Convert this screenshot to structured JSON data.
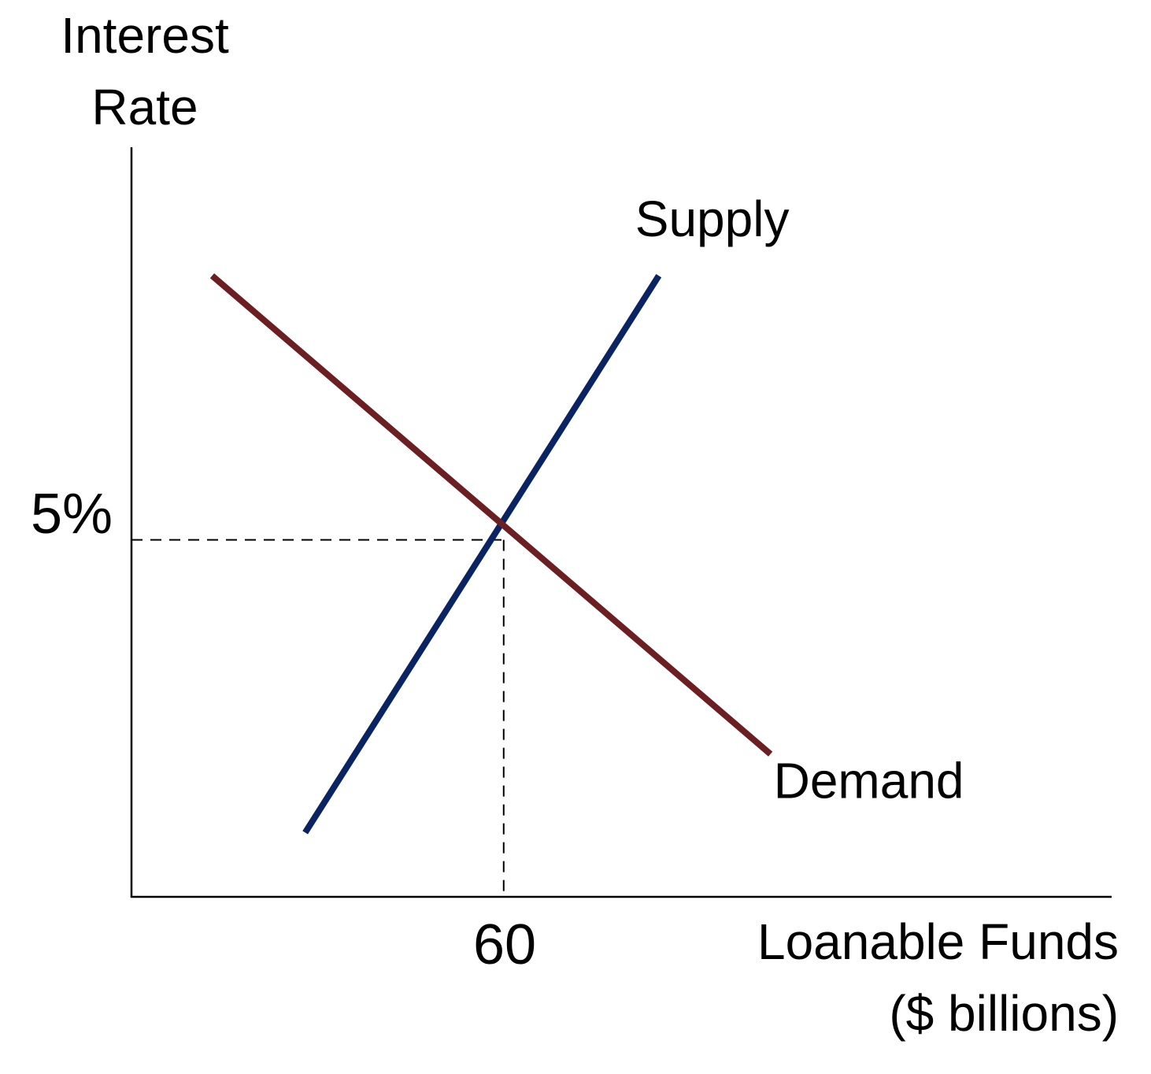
{
  "chart_data": {
    "type": "line",
    "ylabel": [
      "Interest",
      "Rate"
    ],
    "xlabel": [
      "Loanable Funds",
      "($ billions)"
    ],
    "equilibrium": {
      "x": 60,
      "y": 5,
      "x_label": "60",
      "y_label": "5%"
    },
    "xlim": [
      0,
      158
    ],
    "ylim": [
      0,
      10.5
    ],
    "series": [
      {
        "name": "Supply",
        "color": "#0a2463",
        "x": [
          28,
          85
        ],
        "y": [
          0.9,
          8.7
        ]
      },
      {
        "name": "Demand",
        "color": "#6b1f22",
        "x": [
          13,
          103
        ],
        "y": [
          8.7,
          2.0
        ]
      }
    ],
    "grid": false,
    "legend": "none"
  }
}
